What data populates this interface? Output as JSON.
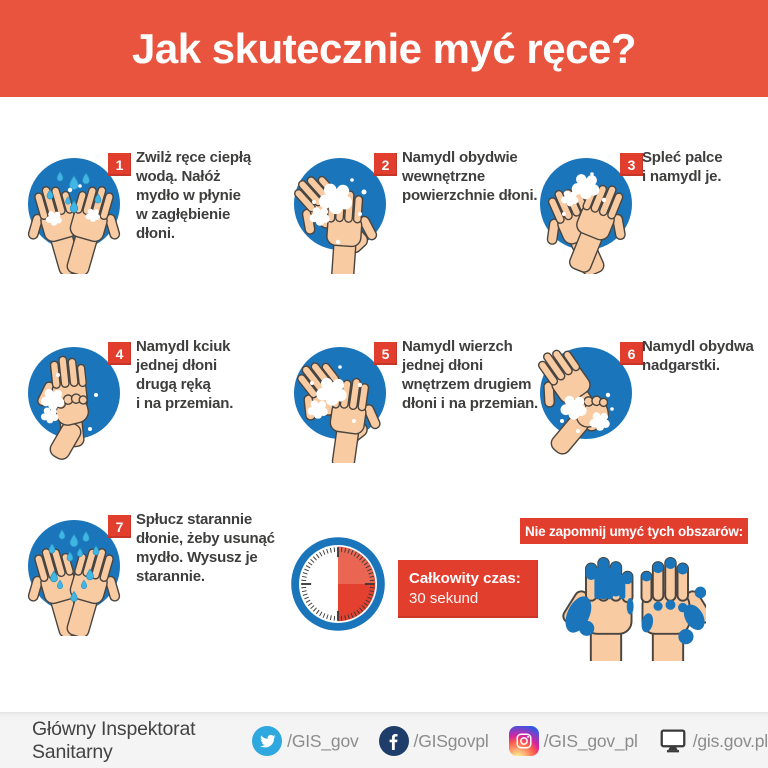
{
  "header": {
    "title": "Jak skutecznie myć ręce?"
  },
  "steps": [
    {
      "number": "1",
      "icon": "wet-hands-water-drops-icon",
      "text": "Zwilż ręce ciepłą\nwodą. Nałóż\nmydło w płynie\nw zagłębienie\ndłoni."
    },
    {
      "number": "2",
      "icon": "lather-palms-icon",
      "text": "Namydl obydwie\nwewnętrzne\npowierzchnie dłoni."
    },
    {
      "number": "3",
      "icon": "interlaced-fingers-icon",
      "text": "Spleć palce\ni namydl je."
    },
    {
      "number": "4",
      "icon": "lather-thumb-icon",
      "text": "Namydl kciuk\njednej dłoni\ndrugą ręką\ni na przemian."
    },
    {
      "number": "5",
      "icon": "lather-back-of-hand-icon",
      "text": "Namydl wierzch\njednej dłoni\nwnętrzem drugiem\ndłoni i na przemian."
    },
    {
      "number": "6",
      "icon": "lather-wrists-icon",
      "text": "Namydl obydwa\nnadgarstki."
    },
    {
      "number": "7",
      "icon": "rinse-and-dry-hands-icon",
      "text": "Spłucz starannie\ndłonie, żeby usunąć\nmydło. Wysusz je\nstarannie."
    }
  ],
  "timer": {
    "icon": "clock-half-red-icon",
    "title": "Całkowity czas:",
    "value": "30 sekund"
  },
  "areas": {
    "title": "Nie zapomnij umyć tych obszarów:",
    "icon": "hands-missed-areas-icon"
  },
  "footer": {
    "brand": "Główny Inspektorat Sanitarny",
    "social": [
      {
        "icon": "twitter-icon",
        "handle": "/GIS_gov"
      },
      {
        "icon": "facebook-icon",
        "handle": "/GISgovpl"
      },
      {
        "icon": "instagram-icon",
        "handle": "/GIS_gov_pl"
      },
      {
        "icon": "website-icon",
        "handle": "/gis.gov.pl"
      }
    ]
  },
  "colors": {
    "header_red": "#E8543E",
    "accent_red": "#E23E2E",
    "blue": "#1B75BB",
    "water_teal": "#3FB6E3",
    "skin": "#F8CBA3",
    "text": "#3E3E3D",
    "footer_bg": "#F4F4F4",
    "handle_gray": "#8C8C8C"
  }
}
